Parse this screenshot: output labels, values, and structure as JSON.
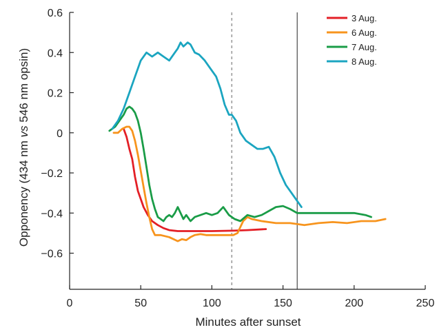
{
  "chart_data": {
    "type": "line",
    "title": "",
    "xlabel": "Minutes after sunset",
    "ylabel_parts": [
      "Opponency (434 nm ",
      "vs",
      " 546 nm opsin)"
    ],
    "xlim": [
      0,
      250
    ],
    "ylim": [
      -0.78,
      0.6
    ],
    "xticks": [
      0,
      50,
      100,
      150,
      200,
      250
    ],
    "yticks": [
      0.6,
      0.4,
      0.2,
      0,
      -0.2,
      -0.4,
      -0.6
    ],
    "ytick_labels": [
      "0.6",
      "0.4",
      "0.2",
      "0",
      "−0.2",
      "−0.4",
      "−0.6"
    ],
    "grid": false,
    "legend_position": "top-right",
    "reference_lines": [
      {
        "x": 114,
        "style": "dotted",
        "color": "#9a9a9a"
      },
      {
        "x": 160,
        "style": "solid",
        "color": "#555555"
      }
    ],
    "series": [
      {
        "name": "3 Aug.",
        "color": "#e31f26",
        "x": [
          38,
          40,
          42,
          44,
          46,
          48,
          50,
          52,
          55,
          58,
          62,
          66,
          70,
          76,
          85,
          100,
          115,
          125,
          138
        ],
        "y": [
          0.02,
          -0.02,
          -0.08,
          -0.13,
          -0.22,
          -0.29,
          -0.33,
          -0.37,
          -0.41,
          -0.44,
          -0.46,
          -0.475,
          -0.485,
          -0.49,
          -0.49,
          -0.49,
          -0.488,
          -0.485,
          -0.48
        ]
      },
      {
        "name": "6 Aug.",
        "color": "#f7941d",
        "x": [
          31,
          34,
          37,
          40,
          42,
          44,
          46,
          48,
          50,
          52,
          54,
          56,
          58,
          60,
          62,
          64,
          67,
          70,
          73,
          76,
          79,
          82,
          85,
          88,
          92,
          96,
          100,
          106,
          112,
          115,
          118,
          120,
          122,
          125,
          128,
          135,
          145,
          155,
          165,
          175,
          185,
          195,
          205,
          215,
          222
        ],
        "y": [
          0.0,
          0.0,
          0.02,
          0.03,
          0.03,
          0.01,
          -0.04,
          -0.11,
          -0.19,
          -0.27,
          -0.35,
          -0.42,
          -0.48,
          -0.51,
          -0.51,
          -0.51,
          -0.515,
          -0.52,
          -0.53,
          -0.54,
          -0.53,
          -0.535,
          -0.52,
          -0.51,
          -0.505,
          -0.51,
          -0.51,
          -0.51,
          -0.51,
          -0.51,
          -0.5,
          -0.47,
          -0.44,
          -0.42,
          -0.43,
          -0.44,
          -0.45,
          -0.45,
          -0.46,
          -0.45,
          -0.445,
          -0.45,
          -0.44,
          -0.44,
          -0.43
        ]
      },
      {
        "name": "7 Aug.",
        "color": "#1a9c47",
        "x": [
          28,
          32,
          35,
          38,
          40,
          42,
          44,
          46,
          48,
          50,
          52,
          54,
          56,
          58,
          60,
          62,
          64,
          66,
          68,
          70,
          72,
          74,
          76,
          78,
          80,
          82,
          85,
          88,
          92,
          96,
          100,
          104,
          108,
          112,
          116,
          120,
          125,
          130,
          135,
          140,
          145,
          150,
          155,
          160,
          170,
          185,
          200,
          208,
          212
        ],
        "y": [
          0.01,
          0.03,
          0.06,
          0.09,
          0.12,
          0.13,
          0.12,
          0.1,
          0.06,
          0.0,
          -0.08,
          -0.17,
          -0.26,
          -0.33,
          -0.38,
          -0.42,
          -0.43,
          -0.44,
          -0.42,
          -0.41,
          -0.42,
          -0.4,
          -0.37,
          -0.4,
          -0.43,
          -0.41,
          -0.44,
          -0.42,
          -0.41,
          -0.4,
          -0.41,
          -0.4,
          -0.37,
          -0.41,
          -0.43,
          -0.44,
          -0.41,
          -0.42,
          -0.41,
          -0.39,
          -0.37,
          -0.365,
          -0.38,
          -0.4,
          -0.4,
          -0.4,
          -0.4,
          -0.41,
          -0.42
        ]
      },
      {
        "name": "8 Aug.",
        "color": "#1ba5c0",
        "x": [
          30,
          34,
          38,
          42,
          46,
          50,
          54,
          58,
          62,
          66,
          70,
          74,
          76,
          78,
          80,
          83,
          85,
          88,
          91,
          95,
          99,
          103,
          106,
          109,
          112,
          114,
          117,
          120,
          124,
          128,
          132,
          136,
          140,
          144,
          148,
          152,
          156,
          160,
          163
        ],
        "y": [
          0.02,
          0.06,
          0.12,
          0.2,
          0.28,
          0.36,
          0.4,
          0.38,
          0.4,
          0.38,
          0.36,
          0.4,
          0.42,
          0.45,
          0.43,
          0.45,
          0.44,
          0.4,
          0.39,
          0.36,
          0.32,
          0.28,
          0.22,
          0.14,
          0.09,
          0.09,
          0.06,
          0.0,
          -0.04,
          -0.06,
          -0.08,
          -0.08,
          -0.07,
          -0.12,
          -0.2,
          -0.26,
          -0.3,
          -0.34,
          -0.37
        ]
      }
    ]
  }
}
